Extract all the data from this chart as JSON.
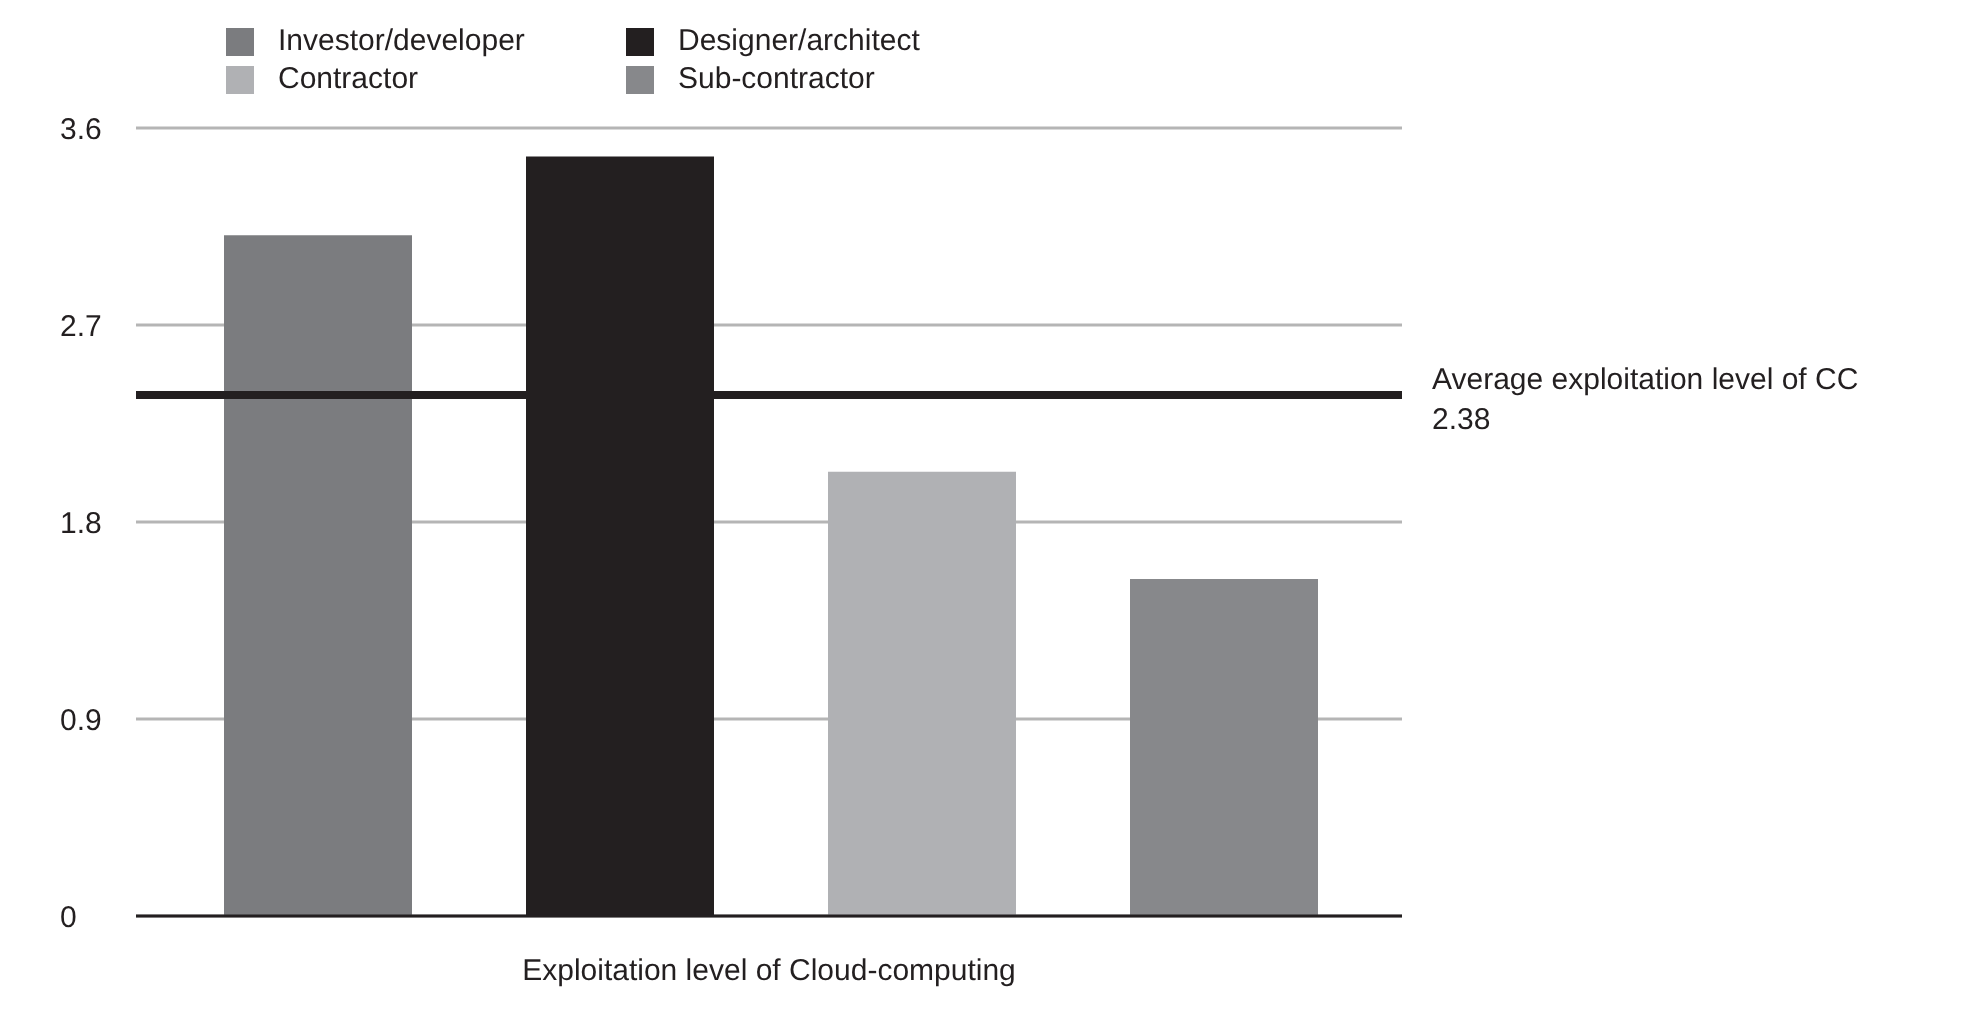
{
  "chart_data": {
    "type": "bar",
    "xlabel": "Exploitation level of Cloud-computing",
    "categories": [
      null
    ],
    "series": [
      {
        "name": "Investor/developer",
        "color": "#7b7c7f",
        "values": [
          3.11
        ]
      },
      {
        "name": "Designer/architect",
        "color": "#231f20",
        "values": [
          3.47
        ]
      },
      {
        "name": "Contractor",
        "color": "#b0b1b4",
        "values": [
          2.03
        ]
      },
      {
        "name": "Sub-contractor",
        "color": "#87888b",
        "values": [
          1.54
        ]
      }
    ],
    "ylim": [
      0,
      3.6
    ],
    "yticks": [
      0,
      0.9,
      1.8,
      2.7,
      3.6
    ],
    "grid": "y",
    "legend": "top left",
    "ref_lines": [
      {
        "axis": "y",
        "value": 2.38,
        "label": "Average exploitation level of CC\n2.38",
        "color": "#231f20"
      }
    ]
  }
}
